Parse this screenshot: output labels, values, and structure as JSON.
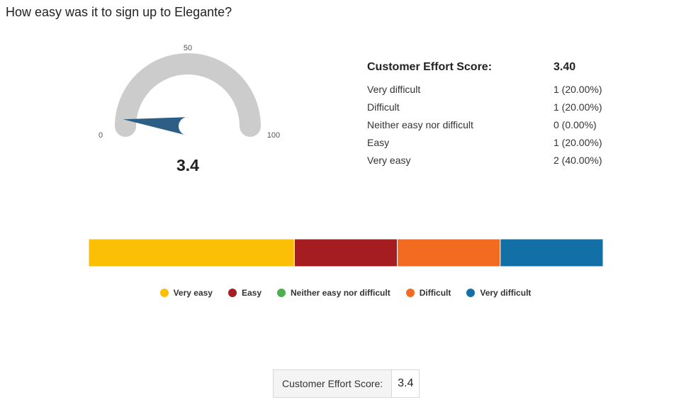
{
  "question": "How easy was it to sign up to Elegante?",
  "chart_data": [
    {
      "type": "gauge",
      "value": 3.4,
      "value_label": "3.4",
      "min": 0,
      "max": 100,
      "min_label": "0",
      "mid_label": "50",
      "max_label": "100",
      "colors": {
        "track": "#cccccc",
        "needle": "#2d5f86"
      }
    },
    {
      "type": "table",
      "header": {
        "label": "Customer Effort Score:",
        "value": "3.40"
      },
      "rows": [
        {
          "label": "Very difficult",
          "value": "1 (20.00%)",
          "count": 1,
          "percent": 20.0
        },
        {
          "label": "Difficult",
          "value": "1 (20.00%)",
          "count": 1,
          "percent": 20.0
        },
        {
          "label": "Neither easy nor difficult",
          "value": "0 (0.00%)",
          "count": 0,
          "percent": 0.0
        },
        {
          "label": "Easy",
          "value": "1 (20.00%)",
          "count": 1,
          "percent": 20.0
        },
        {
          "label": "Very easy",
          "value": "2 (40.00%)",
          "count": 2,
          "percent": 40.0
        }
      ]
    },
    {
      "type": "bar",
      "stacked": true,
      "orientation": "horizontal",
      "series": [
        {
          "name": "Very easy",
          "values": [
            40
          ],
          "color": "#fbbf06"
        },
        {
          "name": "Easy",
          "values": [
            20
          ],
          "color": "#a51d21"
        },
        {
          "name": "Neither easy nor difficult",
          "values": [
            0
          ],
          "color": "#4caf50"
        },
        {
          "name": "Difficult",
          "values": [
            20
          ],
          "color": "#f26b21"
        },
        {
          "name": "Very difficult",
          "values": [
            20
          ],
          "color": "#1370a7"
        }
      ],
      "legend": "bottom"
    }
  ],
  "score_box": {
    "label": "Customer Effort Score:",
    "value": "3.4"
  }
}
